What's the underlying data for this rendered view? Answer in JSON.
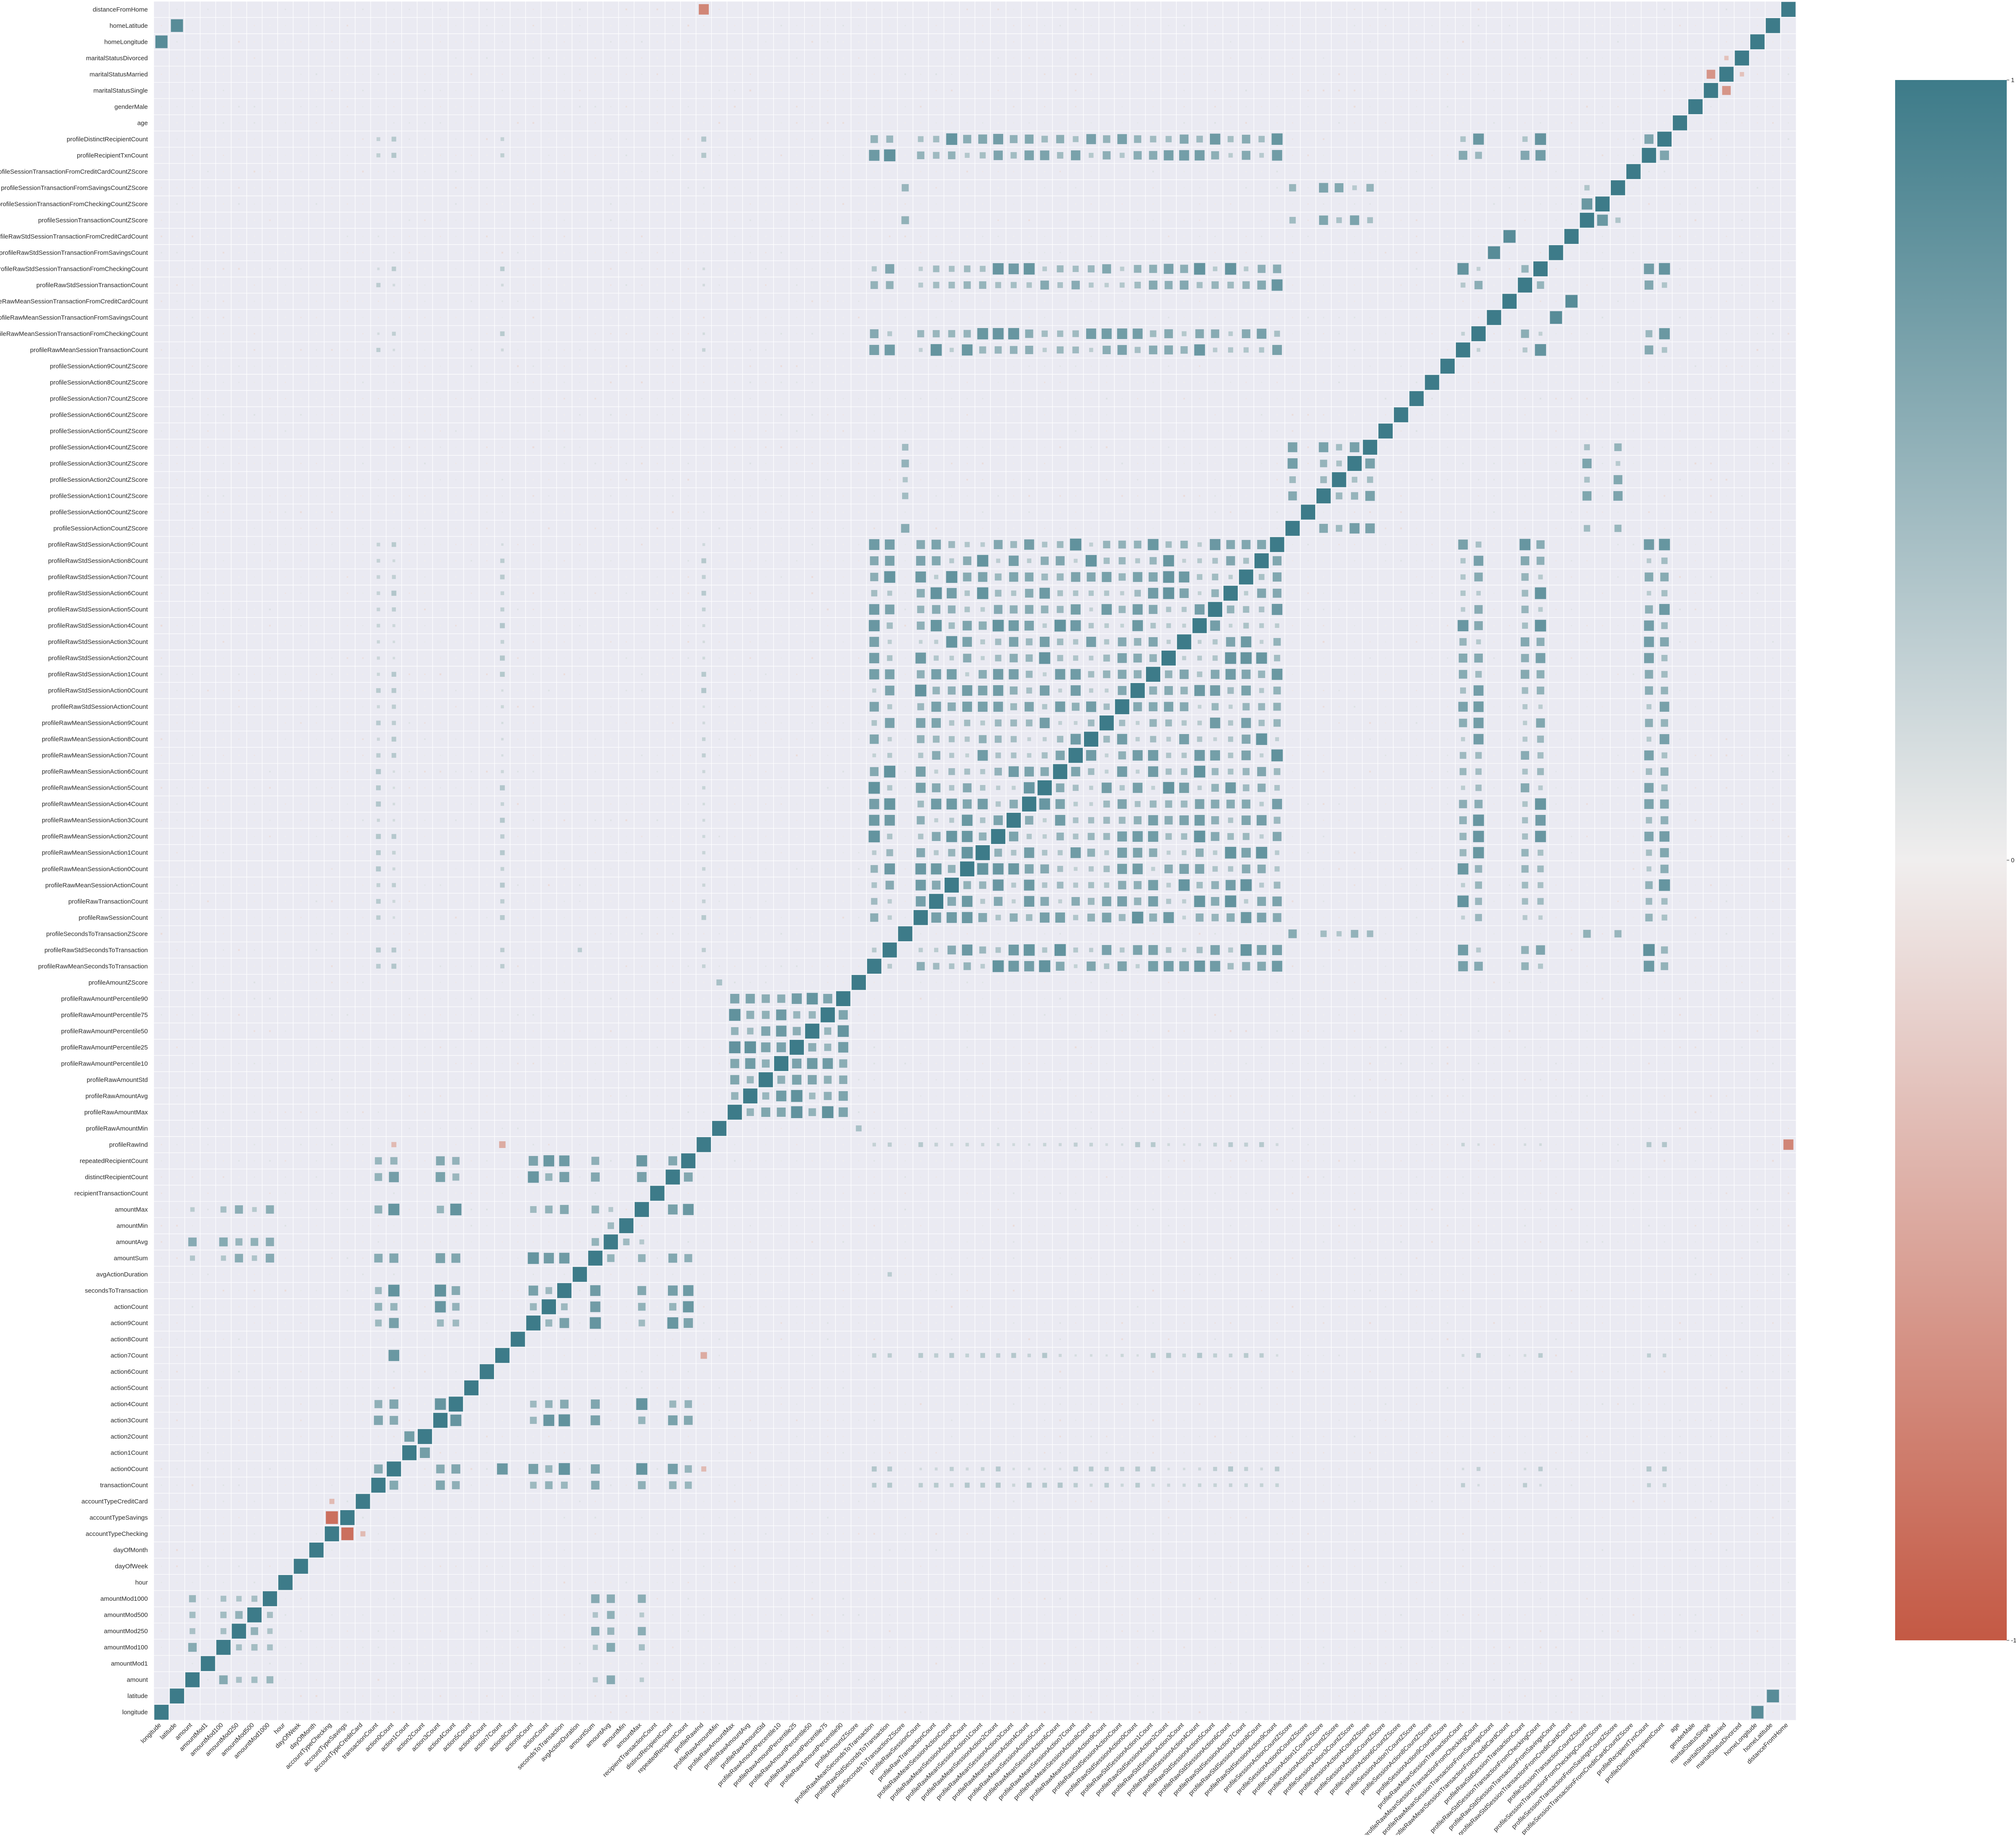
{
  "chart_data": {
    "type": "heatmap",
    "title": "",
    "xlabel": "",
    "ylabel": "",
    "variables": [
      "longitude",
      "latitude",
      "amount",
      "amountMod1",
      "amountMod100",
      "amountMod250",
      "amountMod500",
      "amountMod1000",
      "hour",
      "dayOfWeek",
      "dayOfMonth",
      "accountTypeChecking",
      "accountTypeSavings",
      "accountTypeCreditCard",
      "transactionCount",
      "action0Count",
      "action1Count",
      "action2Count",
      "action3Count",
      "action4Count",
      "action5Count",
      "action6Count",
      "action7Count",
      "action8Count",
      "action9Count",
      "actionCount",
      "secondsToTransaction",
      "avgActionDuration",
      "amountSum",
      "amountAvg",
      "amountMin",
      "amountMax",
      "recipientTransactionCount",
      "distinctRecipientCount",
      "repeatedRecipientCount",
      "profileRawInd",
      "profileRawAmountMin",
      "profileRawAmountMax",
      "profileRawAmountAvg",
      "profileRawAmountStd",
      "profileRawAmountPercentile10",
      "profileRawAmountPercentile25",
      "profileRawAmountPercentile50",
      "profileRawAmountPercentile75",
      "profileRawAmountPercentile90",
      "profileAmountZScore",
      "profileRawMeanSecondsToTransaction",
      "profileRawStdSecondsToTransaction",
      "profileSecondsToTransactionZScore",
      "profileRawSessionCount",
      "profileRawTransactionCount",
      "profileRawMeanSessionActionCount",
      "profileRawMeanSessionAction0Count",
      "profileRawMeanSessionAction1Count",
      "profileRawMeanSessionAction2Count",
      "profileRawMeanSessionAction3Count",
      "profileRawMeanSessionAction4Count",
      "profileRawMeanSessionAction5Count",
      "profileRawMeanSessionAction6Count",
      "profileRawMeanSessionAction7Count",
      "profileRawMeanSessionAction8Count",
      "profileRawMeanSessionAction9Count",
      "profileRawStdSessionActionCount",
      "profileRawStdSessionAction0Count",
      "profileRawStdSessionAction1Count",
      "profileRawStdSessionAction2Count",
      "profileRawStdSessionAction3Count",
      "profileRawStdSessionAction4Count",
      "profileRawStdSessionAction5Count",
      "profileRawStdSessionAction6Count",
      "profileRawStdSessionAction7Count",
      "profileRawStdSessionAction8Count",
      "profileRawStdSessionAction9Count",
      "profileSessionActionCountZScore",
      "profileSessionAction0CountZScore",
      "profileSessionAction1CountZScore",
      "profileSessionAction2CountZScore",
      "profileSessionAction3CountZScore",
      "profileSessionAction4CountZScore",
      "profileSessionAction5CountZScore",
      "profileSessionAction6CountZScore",
      "profileSessionAction7CountZScore",
      "profileSessionAction8CountZScore",
      "profileSessionAction9CountZScore",
      "profileRawMeanSessionTransactionCount",
      "profileRawMeanSessionTransactionFromCheckingCount",
      "profileRawMeanSessionTransactionFromSavingsCount",
      "profileRawMeanSessionTransactionFromCreditCardCount",
      "profileRawStdSessionTransactionCount",
      "profileRawStdSessionTransactionFromCheckingCount",
      "profileRawStdSessionTransactionFromSavingsCount",
      "profileRawStdSessionTransactionFromCreditCardCount",
      "profileSessionTransactionCountZScore",
      "profileSessionTransactionFromCheckingCountZScore",
      "profileSessionTransactionFromSavingsCountZScore",
      "profileSessionTransactionFromCreditCardCountZScore",
      "profileRecipientTxnCount",
      "profileDistinctRecipientCount",
      "age",
      "genderMale",
      "maritalStatusSingle",
      "maritalStatusMarried",
      "maritalStatusDivorced",
      "homeLongitude",
      "homeLatitude",
      "distanceFromHome"
    ],
    "groups": {
      "txn_core": [
        "transactionCount",
        "action0Count",
        "action3Count",
        "action4Count",
        "action9Count",
        "actionCount",
        "secondsToTransaction",
        "amountSum",
        "amountMax",
        "distinctRecipientCount",
        "repeatedRecipientCount"
      ],
      "amount_mods": [
        "amount",
        "amountMod100",
        "amountMod250",
        "amountMod500",
        "amountMod1000",
        "amountAvg",
        "amountMax",
        "amountSum"
      ],
      "profile_amounts": [
        "profileRawAmountMax",
        "profileRawAmountAvg",
        "profileRawAmountStd",
        "profileRawAmountPercentile10",
        "profileRawAmountPercentile25",
        "profileRawAmountPercentile50",
        "profileRawAmountPercentile75",
        "profileRawAmountPercentile90"
      ],
      "profile_session": [
        "profileRawMeanSecondsToTransaction",
        "profileRawStdSecondsToTransaction",
        "profileRawSessionCount",
        "profileRawTransactionCount",
        "profileRawMeanSessionActionCount",
        "profileRawMeanSessionAction0Count",
        "profileRawMeanSessionAction1Count",
        "profileRawMeanSessionAction2Count",
        "profileRawMeanSessionAction3Count",
        "profileRawMeanSessionAction4Count",
        "profileRawMeanSessionAction5Count",
        "profileRawMeanSessionAction6Count",
        "profileRawMeanSessionAction7Count",
        "profileRawMeanSessionAction8Count",
        "profileRawMeanSessionAction9Count",
        "profileRawStdSessionActionCount",
        "profileRawStdSessionAction0Count",
        "profileRawStdSessionAction1Count",
        "profileRawStdSessionAction2Count",
        "profileRawStdSessionAction3Count",
        "profileRawStdSessionAction4Count",
        "profileRawStdSessionAction5Count",
        "profileRawStdSessionAction6Count",
        "profileRawStdSessionAction7Count",
        "profileRawStdSessionAction8Count",
        "profileRawStdSessionAction9Count",
        "profileRawMeanSessionTransactionCount",
        "profileRawMeanSessionTransactionFromCheckingCount",
        "profileRawStdSessionTransactionCount",
        "profileRawStdSessionTransactionFromCheckingCount",
        "profileDistinctRecipientCount",
        "profileRecipientTxnCount"
      ],
      "profile_zscores": [
        "profileSessionActionCountZScore",
        "profileSessionAction1CountZScore",
        "profileSessionAction2CountZScore",
        "profileSessionAction3CountZScore",
        "profileSessionAction4CountZScore",
        "profileSecondsToTransactionZScore",
        "profileSessionTransactionCountZScore",
        "profileSessionTransactionFromSavingsCountZScore"
      ]
    },
    "pair_correlations": [
      {
        "a": "accountTypeChecking",
        "b": "accountTypeSavings",
        "value": -0.85
      },
      {
        "a": "accountTypeChecking",
        "b": "accountTypeCreditCard",
        "value": -0.35
      },
      {
        "a": "maritalStatusMarried",
        "b": "maritalStatusSingle",
        "value": -0.6
      },
      {
        "a": "maritalStatusDivorced",
        "b": "maritalStatusMarried",
        "value": -0.3
      },
      {
        "a": "homeLongitude",
        "b": "longitude",
        "value": 0.85
      },
      {
        "a": "homeLatitude",
        "b": "latitude",
        "value": 0.85
      },
      {
        "a": "profileRawInd",
        "b": "distanceFromHome",
        "value": -0.7
      },
      {
        "a": "profileRawInd",
        "b": "action7Count",
        "value": -0.45
      },
      {
        "a": "profileRawInd",
        "b": "action0Count",
        "value": -0.35
      },
      {
        "a": "profileRawMeanSessionTransactionFromSavingsCount",
        "b": "profileRawStdSessionTransactionFromSavingsCount",
        "value": 0.85
      },
      {
        "a": "profileRawMeanSessionTransactionFromCreditCardCount",
        "b": "profileRawStdSessionTransactionFromCreditCardCount",
        "value": 0.85
      },
      {
        "a": "profileSessionTransactionFromCheckingCountZScore",
        "b": "profileSessionTransactionCountZScore",
        "value": 0.75
      },
      {
        "a": "profileRawAmountMin",
        "b": "profileAmountZScore",
        "value": 0.4
      },
      {
        "a": "avgActionDuration",
        "b": "profileRawStdSecondsToTransaction",
        "value": 0.3
      },
      {
        "a": "action2Count",
        "b": "action1Count",
        "value": 0.7
      },
      {
        "a": "action7Count",
        "b": "action0Count",
        "value": 0.75
      },
      {
        "a": "amountMin",
        "b": "amountAvg",
        "value": 0.45
      }
    ],
    "value_range": [
      -1,
      1
    ],
    "colorbar": {
      "ticks": [
        1,
        0,
        -1
      ],
      "tick_labels": [
        "1",
        "0",
        "-1"
      ],
      "colors": {
        "high": "#3d7b89",
        "mid": "#f0eeee",
        "low": "#c45944"
      }
    },
    "grid": true,
    "legend": "colorbar-right"
  },
  "colors": {
    "plot_background": "#eaeaf2",
    "positive": "#3d7b89",
    "negative": "#c45944",
    "neutral": "#f0eeee"
  }
}
